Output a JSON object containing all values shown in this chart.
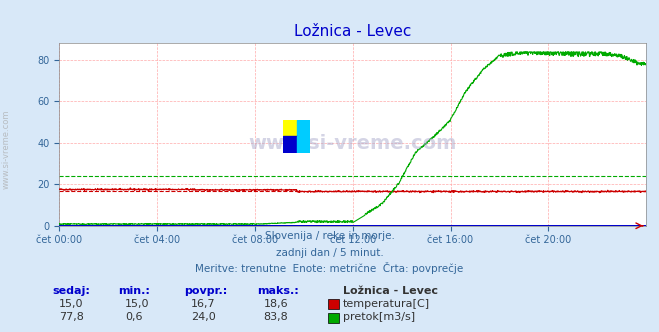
{
  "title": "Ložnica - Levec",
  "bg_color": "#d8e8f8",
  "plot_bg_color": "#ffffff",
  "grid_color": "#ffaaaa",
  "x_labels": [
    "čet 00:00",
    "čet 04:00",
    "čet 08:00",
    "čet 12:00",
    "čet 16:00",
    "čet 20:00"
  ],
  "x_ticks_pos": [
    0,
    288,
    576,
    864,
    1152,
    1440
  ],
  "total_points": 1728,
  "ylim": [
    0,
    88
  ],
  "yticks": [
    0,
    20,
    40,
    60,
    80
  ],
  "temp_color": "#cc0000",
  "temp_avg_color": "#cc0000",
  "flow_color": "#00aa00",
  "flow_avg_color": "#00aa00",
  "height_color": "#0000cc",
  "temp_avg": 16.7,
  "flow_avg": 24.0,
  "temp_min": 15.0,
  "temp_max": 18.6,
  "flow_min": 0.6,
  "flow_max": 83.8,
  "subtitle1": "Slovenija / reke in morje.",
  "subtitle2": "zadnji dan / 5 minut.",
  "subtitle3": "Meritve: trenutne  Enote: metrične  Črta: povprečje",
  "table_headers": [
    "sedaj:",
    "min.:",
    "povpr.:",
    "maks.:"
  ],
  "table_row1": [
    "15,0",
    "15,0",
    "16,7",
    "18,6"
  ],
  "table_row2": [
    "77,8",
    "0,6",
    "24,0",
    "83,8"
  ],
  "station_label": "Ložnica - Levec",
  "legend1": "temperatura[C]",
  "legend2": "pretok[m3/s]",
  "watermark_text": "www.si-vreme.com",
  "sidewatermark": "www.si-vreme.com"
}
